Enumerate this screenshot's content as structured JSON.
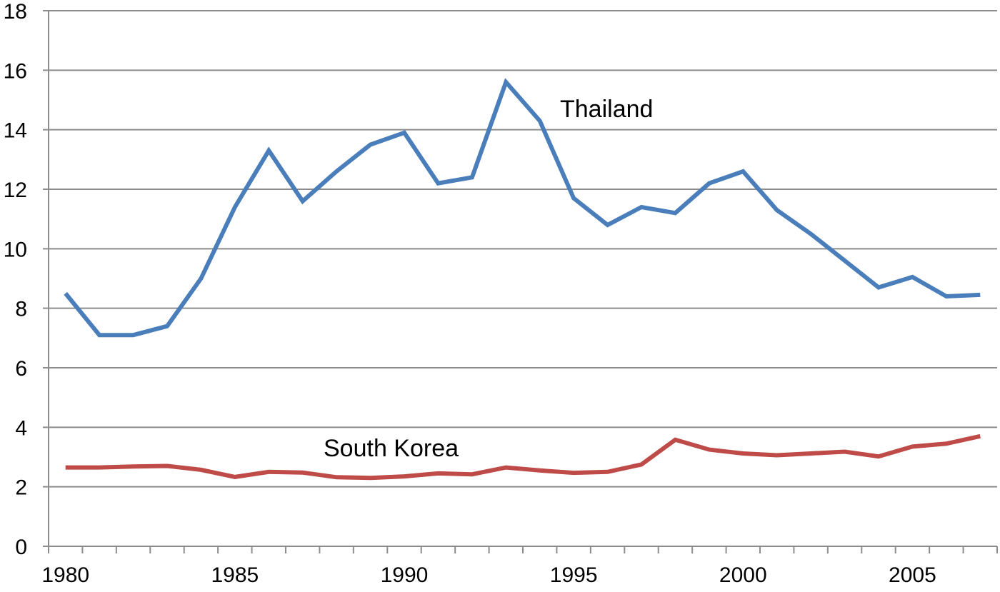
{
  "chart_data": {
    "type": "line",
    "title": "",
    "xlabel": "",
    "ylabel": "",
    "xlim": [
      1979.5,
      2007.5
    ],
    "ylim": [
      0,
      18
    ],
    "y_ticks": [
      "0",
      "2",
      "4",
      "6",
      "8",
      "10",
      "12",
      "14",
      "16",
      "18"
    ],
    "x_ticks": [
      "1980",
      "1985",
      "1990",
      "1995",
      "2000",
      "2005"
    ],
    "grid": "horizontal",
    "legend": "none",
    "x": [
      1980,
      1981,
      1982,
      1983,
      1984,
      1985,
      1986,
      1987,
      1988,
      1989,
      1990,
      1991,
      1992,
      1993,
      1994,
      1995,
      1996,
      1997,
      1998,
      1999,
      2000,
      2001,
      2002,
      2003,
      2004,
      2005,
      2006,
      2007
    ],
    "series": [
      {
        "name": "Thailand",
        "color": "#4a7ebb",
        "values": [
          8.5,
          7.1,
          7.1,
          7.4,
          9.0,
          11.4,
          13.3,
          11.6,
          12.6,
          13.5,
          13.9,
          12.2,
          12.4,
          15.6,
          14.3,
          11.7,
          10.8,
          11.4,
          11.2,
          12.2,
          12.6,
          11.3,
          10.5,
          9.6,
          8.7,
          9.05,
          8.4,
          8.45
        ]
      },
      {
        "name": "South Korea",
        "color": "#be4b48",
        "values": [
          2.65,
          2.65,
          2.68,
          2.7,
          2.57,
          2.33,
          2.5,
          2.48,
          2.32,
          2.3,
          2.35,
          2.45,
          2.42,
          2.65,
          2.55,
          2.47,
          2.5,
          2.75,
          3.58,
          3.25,
          3.12,
          3.06,
          3.12,
          3.18,
          3.02,
          3.35,
          3.45,
          3.7
        ]
      }
    ],
    "annotations": [
      {
        "text": "Thailand",
        "series": 0
      },
      {
        "text": "South Korea",
        "series": 1
      }
    ]
  }
}
